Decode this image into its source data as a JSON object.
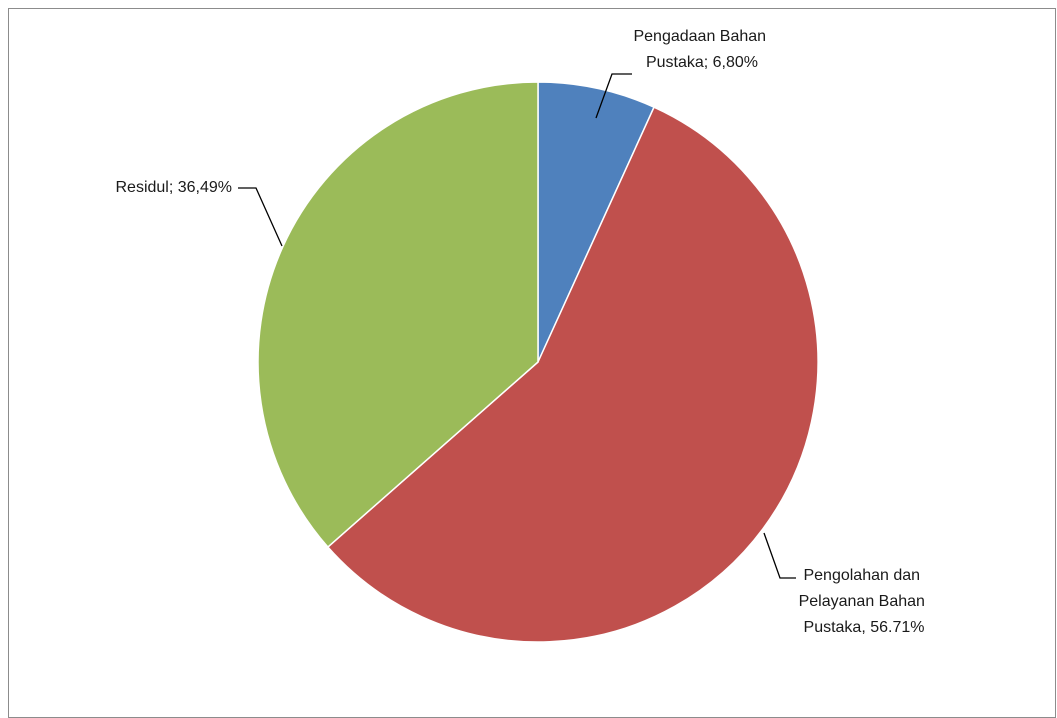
{
  "chart_data": {
    "type": "pie",
    "title": "",
    "slices": [
      {
        "name": "Pengadaan Bahan Pustaka",
        "value": 6.8,
        "label_lines": [
          "Pengadaan Bahan",
          "Pustaka; 6,80%"
        ],
        "color": "#4f81bd"
      },
      {
        "name": "Pengolahan dan Pelayanan Bahan Pustaka",
        "value": 56.71,
        "label_lines": [
          "Pengolahan dan",
          "Pelayanan Bahan",
          "Pustaka, 56.71%"
        ],
        "color": "#c0504d"
      },
      {
        "name": "Residul",
        "value": 36.49,
        "label_lines": [
          "Residul; 36,49%"
        ],
        "color": "#9bbb59"
      }
    ],
    "start_angle": "12 o'clock",
    "direction": "clockwise",
    "legend": "none"
  }
}
